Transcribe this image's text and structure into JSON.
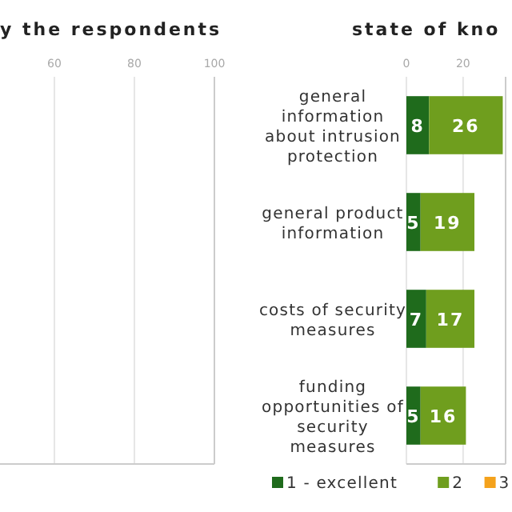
{
  "chart_data": [
    {
      "type": "other",
      "title": "y the respondents",
      "annotations": [
        "60",
        "80",
        "100"
      ]
    },
    {
      "type": "bar",
      "orientation": "horizontal",
      "stacked": true,
      "title": "state of kno",
      "categories": [
        "general\ninformation\nabout intrusion\nprotection",
        "general product\ninformation",
        "costs of security\nmeasures",
        "funding\nopportunities of\nsecurity\nmeasures"
      ],
      "xlim": [
        0,
        35
      ],
      "xticks": [
        0,
        20
      ],
      "grid": "x",
      "data_labels": true,
      "legend": "bottom",
      "series": [
        {
          "name": "1 - excellent",
          "color": "#1f6b1c",
          "values": [
            8,
            5,
            7,
            5
          ]
        },
        {
          "name": "2",
          "color": "#6f9e1e",
          "values": [
            26,
            19,
            17,
            16
          ]
        },
        {
          "name": "3",
          "color": "#f4a21c",
          "values": [
            null,
            null,
            null,
            null
          ]
        },
        {
          "color": "#e8621e",
          "values": [
            null,
            null,
            null,
            null
          ]
        }
      ]
    }
  ]
}
